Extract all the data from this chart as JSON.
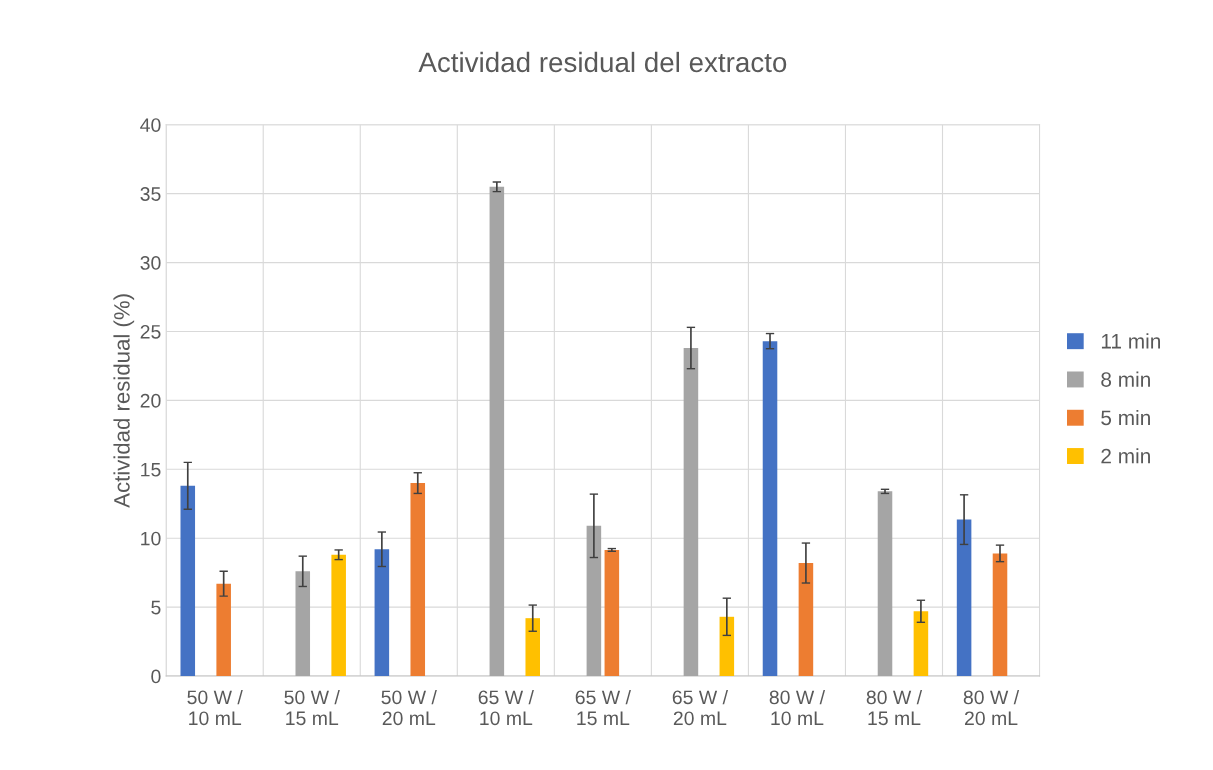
{
  "chart_data": {
    "type": "bar",
    "title": "Actividad residual del extracto",
    "ylabel": "Actividad residual (%)",
    "categories": [
      "50 W /\n10 mL",
      "50 W /\n15 mL",
      "50 W /\n20 mL",
      "65 W /\n10 mL",
      "65 W /\n15 mL",
      "65 W /\n20 mL",
      "80 W /\n10 mL",
      "80 W /\n15 mL",
      "80 W /\n20 mL"
    ],
    "series": [
      {
        "name": "11 min",
        "color": "#4472c4",
        "values": [
          13.8,
          null,
          9.2,
          null,
          null,
          null,
          24.3,
          null,
          11.35
        ],
        "errors": [
          1.7,
          null,
          1.25,
          null,
          null,
          null,
          0.55,
          null,
          1.8
        ]
      },
      {
        "name": "8 min",
        "color": "#a5a5a5",
        "values": [
          null,
          7.6,
          null,
          35.5,
          10.9,
          23.8,
          null,
          13.4,
          null
        ],
        "errors": [
          null,
          1.1,
          null,
          0.35,
          2.3,
          1.5,
          null,
          0.15,
          null
        ]
      },
      {
        "name": "5 min",
        "color": "#ed7d31",
        "values": [
          6.7,
          null,
          14.0,
          null,
          9.15,
          null,
          8.2,
          null,
          8.9
        ],
        "errors": [
          0.9,
          null,
          0.75,
          null,
          0.1,
          null,
          1.45,
          null,
          0.6
        ]
      },
      {
        "name": "2 min",
        "color": "#ffc000",
        "values": [
          null,
          8.8,
          null,
          4.2,
          null,
          4.3,
          null,
          4.7,
          null
        ],
        "errors": [
          null,
          0.35,
          null,
          0.95,
          null,
          1.35,
          null,
          0.8,
          null
        ]
      }
    ],
    "ylim": [
      0,
      40
    ],
    "yticks": [
      0,
      5,
      10,
      15,
      20,
      25,
      30,
      35,
      40
    ],
    "grid": true,
    "legend": "right"
  }
}
